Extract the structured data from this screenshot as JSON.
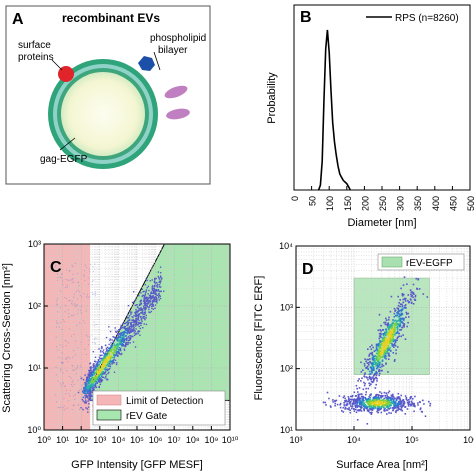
{
  "panels": {
    "A": {
      "letter": "A",
      "title": "recombinant EVs",
      "labels": {
        "surface_proteins_1": "surface",
        "surface_proteins_2": "proteins",
        "phospholipid_1": "phospholipid",
        "phospholipid_2": "bilayer",
        "gag": "gag-EGFP"
      },
      "colors": {
        "membrane_outer": "#2fa37a",
        "membrane_inner": "#8fd3c8",
        "core": "#fbfbe6",
        "protein_red": "#e0242a",
        "protein_blue": "#1c4fa8",
        "lipid_purple": "#c07fc0"
      }
    },
    "B": {
      "letter": "B"
    },
    "C": {
      "letter": "C"
    },
    "D": {
      "letter": "D"
    }
  },
  "chart_data": [
    {
      "panel": "B",
      "type": "line",
      "xlabel": "Diameter [nm]",
      "ylabel": "Probability",
      "xlim": [
        0,
        500
      ],
      "x_ticks": [
        "0",
        "50",
        "100",
        "150",
        "200",
        "250",
        "300",
        "350",
        "400",
        "450",
        "500"
      ],
      "y_ticks": [],
      "grid": false,
      "legend": "top-right",
      "series": [
        {
          "name": "RPS (n=8260)",
          "color": "#000000",
          "x": [
            70,
            75,
            80,
            85,
            90,
            95,
            100,
            105,
            110,
            115,
            120,
            125,
            130,
            135,
            140,
            145,
            150,
            155,
            160
          ],
          "y": [
            0.0,
            0.03,
            0.18,
            0.55,
            0.88,
            1.0,
            0.86,
            0.62,
            0.42,
            0.3,
            0.22,
            0.15,
            0.1,
            0.08,
            0.06,
            0.05,
            0.04,
            0.02,
            0.0
          ]
        }
      ]
    },
    {
      "panel": "C",
      "type": "scatter",
      "xlabel": "GFP Intensity [GFP MESF]",
      "ylabel": "Scattering Cross-Section [nm²]",
      "x_scale": "log",
      "y_scale": "log",
      "xlim": [
        1,
        10000000000
      ],
      "ylim": [
        1,
        1000
      ],
      "x_ticks": [
        "10⁰",
        "10¹",
        "10²",
        "10³",
        "10⁴",
        "10⁵",
        "10⁶",
        "10⁷",
        "10⁸",
        "10⁹",
        "10¹⁰"
      ],
      "y_ticks": [
        "10⁰",
        "10¹",
        "10²",
        "10³"
      ],
      "grid": true,
      "legend": "bottom-right",
      "regions": [
        {
          "name": "Limit of Detection",
          "color": "#f4b6b6",
          "x_range": [
            1,
            300
          ]
        },
        {
          "name": "rEV Gate",
          "color": "#a8e6b0",
          "polygon": [
            [
              300,
              3
            ],
            [
              300,
              5
            ],
            [
              3000000,
              1000
            ],
            [
              10000000000,
              1000
            ],
            [
              10000000000,
              3
            ]
          ]
        }
      ],
      "clusters": [
        {
          "x_center": 1000,
          "y_center": 10,
          "description": "diagonal population from ~3e2 to ~1e6 MESF, 5 to 300 nm²"
        }
      ]
    },
    {
      "panel": "D",
      "type": "scatter",
      "xlabel": "Surface Area [nm²]",
      "ylabel": "Fluorescence [FITC ERF]",
      "x_scale": "log",
      "y_scale": "log",
      "xlim": [
        1000,
        1000000
      ],
      "ylim": [
        10,
        10000
      ],
      "x_ticks": [
        "10³",
        "10⁴",
        "10⁵",
        "10⁶"
      ],
      "y_ticks": [
        "10¹",
        "10²",
        "10³",
        "10⁴"
      ],
      "grid": true,
      "legend": "top-right",
      "regions": [
        {
          "name": "rEV-EGFP",
          "color": "#a8e0b0",
          "x_range": [
            10000,
            200000
          ],
          "y_range": [
            80,
            3000
          ]
        }
      ],
      "clusters": [
        {
          "description": "bright population inside gate, 2e4–1e5 nm², 100–3000 ERF"
        },
        {
          "description": "dim population near 20–40 ERF, 5e3–2e5 nm²"
        }
      ]
    }
  ]
}
